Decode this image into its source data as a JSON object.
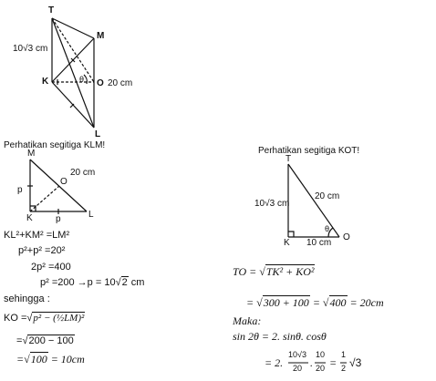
{
  "figure1": {
    "points": {
      "T": "T",
      "M": "M",
      "K": "K",
      "O": "O",
      "L": "L"
    },
    "theta": "θ",
    "tk_length": "10√3 cm",
    "ml_length": "20 cm"
  },
  "klm": {
    "caption": "Perhatikan segitiga KLM!",
    "points": {
      "M": "M",
      "K": "K",
      "L": "L",
      "O": "O"
    },
    "side_km": "p",
    "side_kl": "p",
    "hyp": "20 cm"
  },
  "kot": {
    "caption": "Perhatikan segitiga KOT!",
    "points": {
      "T": "T",
      "K": "K",
      "O": "O"
    },
    "tk": "10√3 cm",
    "to": "20 cm",
    "ko": "10 cm",
    "theta": "θ"
  },
  "left_work": {
    "line1": "KL²+KM² =LM²",
    "line2": "p²+p² =20²",
    "line3": "2p² =400",
    "line4a": "p² =200 →p = 10",
    "line4b": "2",
    "line4c": " cm",
    "sehingga": "sehingga :",
    "ko_prefix": "KO =",
    "ko_expr_a": "p² − ",
    "ko_expr_b": "(½LM)²",
    "line6a": "=",
    "line6b": "200 − 100",
    "line7a": "=",
    "line7b": "100",
    "line7c": " = 10cm"
  },
  "right_work": {
    "to_prefix": "TO =",
    "to_expr": "TK² + KO²",
    "line2a": "=",
    "line2b": "300 + 100",
    "line2c": " =",
    "line2d": "400",
    "line2e": " = 20cm",
    "maka": "Maka:",
    "sin_line": "sin 2θ = 2. sinθ. cosθ",
    "last_a": "= 2.",
    "frac1_num": "10√3",
    "frac1_den": "20",
    "dot": ".",
    "frac2_num": "10",
    "frac2_den": "20",
    "eq": "=",
    "frac3_num": "1",
    "frac3_den": "2",
    "last_b": "√3"
  }
}
